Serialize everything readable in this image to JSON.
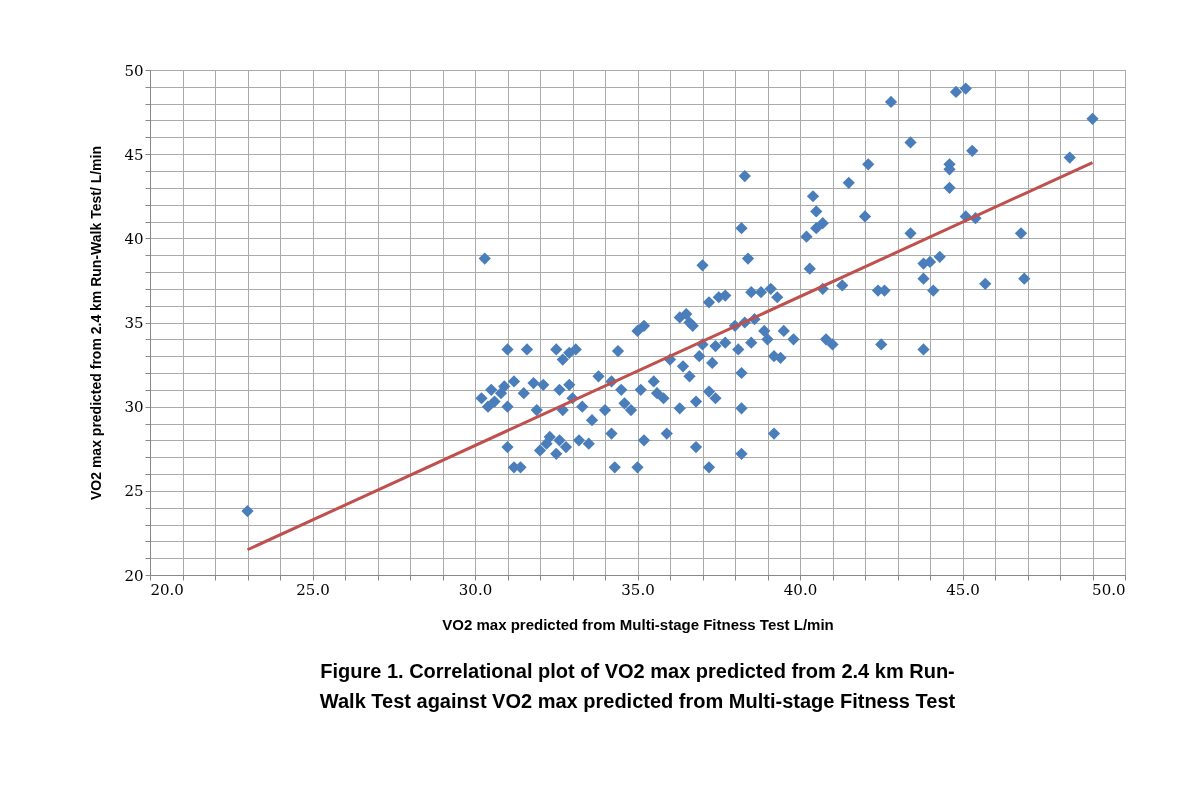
{
  "chart_data": {
    "type": "scatter",
    "xlabel": "VO2 max predicted  from Multi-stage Fitness  Test L/min",
    "ylabel": "VO2 max predicted  from 2.4 km Run-Walk Test/ L/min",
    "annotations": [
      "Figure 1. Correlational  plot of VO2 max predicted from 2.4 km Run-\nWalk Test against VO2 max predicted from Multi-stage Fitness Test"
    ],
    "xlim": [
      20,
      50
    ],
    "ylim": [
      20,
      50
    ],
    "grid": true,
    "xticks": [
      {
        "value": 20,
        "label": "20.0"
      },
      {
        "value": 21,
        "label": null
      },
      {
        "value": 22,
        "label": null
      },
      {
        "value": 23,
        "label": null
      },
      {
        "value": 24,
        "label": null
      },
      {
        "value": 25,
        "label": "25.0"
      },
      {
        "value": 26,
        "label": null
      },
      {
        "value": 27,
        "label": null
      },
      {
        "value": 28,
        "label": null
      },
      {
        "value": 29,
        "label": null
      },
      {
        "value": 30,
        "label": "30.0"
      },
      {
        "value": 31,
        "label": null
      },
      {
        "value": 32,
        "label": null
      },
      {
        "value": 33,
        "label": null
      },
      {
        "value": 34,
        "label": null
      },
      {
        "value": 35,
        "label": "35.0"
      },
      {
        "value": 36,
        "label": null
      },
      {
        "value": 37,
        "label": null
      },
      {
        "value": 38,
        "label": null
      },
      {
        "value": 39,
        "label": null
      },
      {
        "value": 40,
        "label": "40.0"
      },
      {
        "value": 41,
        "label": null
      },
      {
        "value": 42,
        "label": null
      },
      {
        "value": 43,
        "label": null
      },
      {
        "value": 44,
        "label": null
      },
      {
        "value": 45,
        "label": "45.0"
      },
      {
        "value": 46,
        "label": null
      },
      {
        "value": 47,
        "label": null
      },
      {
        "value": 48,
        "label": null
      },
      {
        "value": 49,
        "label": null
      },
      {
        "value": 50,
        "label": "50.0"
      }
    ],
    "yticks": [
      20,
      {
        "value": 21,
        "label": null
      },
      {
        "value": 22,
        "label": null
      },
      {
        "value": 23,
        "label": null
      },
      {
        "value": 24,
        "label": null
      },
      25,
      {
        "value": 26,
        "label": null
      },
      {
        "value": 27,
        "label": null
      },
      {
        "value": 28,
        "label": null
      },
      {
        "value": 29,
        "label": null
      },
      30,
      {
        "value": 31,
        "label": null
      },
      {
        "value": 32,
        "label": null
      },
      {
        "value": 33,
        "label": null
      },
      {
        "value": 34,
        "label": null
      },
      35,
      {
        "value": 36,
        "label": null
      },
      {
        "value": 37,
        "label": null
      },
      {
        "value": 38,
        "label": null
      },
      {
        "value": 39,
        "label": null
      },
      40,
      {
        "value": 41,
        "label": null
      },
      {
        "value": 42,
        "label": null
      },
      {
        "value": 43,
        "label": null
      },
      {
        "value": 44,
        "label": null
      },
      45,
      {
        "value": 46,
        "label": null
      },
      {
        "value": 47,
        "label": null
      },
      {
        "value": 48,
        "label": null
      },
      {
        "value": 49,
        "label": null
      },
      50
    ],
    "series": [
      {
        "color": "#4a7ebb",
        "marker": "diamond",
        "x": [
          23.0,
          30.3,
          30.2,
          30.4,
          30.5,
          30.6,
          30.8,
          31.0,
          30.9,
          31.2,
          31.0,
          31.5,
          31.8,
          31.6,
          31.0,
          31.2,
          31.4,
          31.9,
          32.1,
          32.0,
          32.2,
          32.3,
          32.5,
          32.6,
          32.8,
          32.5,
          32.7,
          32.9,
          33.1,
          32.6,
          32.9,
          33.0,
          32.7,
          33.3,
          33.5,
          33.2,
          33.6,
          33.8,
          34.0,
          34.2,
          34.2,
          34.3,
          34.5,
          34.4,
          34.6,
          34.8,
          35.0,
          35.2,
          35.1,
          35.0,
          35.2,
          35.5,
          35.6,
          35.8,
          35.9,
          36.0,
          36.3,
          36.5,
          36.6,
          36.7,
          36.4,
          36.6,
          36.3,
          36.8,
          36.8,
          36.9,
          37.0,
          37.0,
          37.2,
          37.3,
          37.2,
          37.4,
          37.2,
          37.5,
          37.7,
          37.4,
          37.7,
          38.0,
          38.1,
          38.2,
          38.2,
          38.3,
          38.2,
          38.2,
          38.4,
          38.5,
          38.3,
          38.6,
          38.5,
          38.8,
          38.9,
          39.0,
          39.1,
          39.3,
          39.2,
          39.5,
          39.2,
          39.4,
          39.8,
          40.2,
          40.3,
          40.4,
          40.5,
          40.5,
          40.7,
          40.7,
          40.8,
          41.0,
          41.3,
          41.5,
          42.0,
          42.1,
          42.4,
          42.5,
          42.6,
          42.8,
          43.4,
          43.4,
          43.8,
          43.8,
          43.8,
          44.1,
          44.0,
          44.3,
          44.6,
          44.6,
          44.6,
          44.8,
          45.1,
          45.1,
          45.3,
          45.4,
          45.7,
          46.8,
          46.9,
          48.3,
          49.0
        ],
        "values": [
          23.8,
          38.8,
          30.5,
          30.0,
          31.0,
          30.3,
          30.8,
          30.0,
          31.2,
          31.5,
          33.4,
          30.8,
          31.4,
          33.4,
          27.6,
          26.4,
          26.4,
          29.8,
          31.3,
          27.4,
          27.8,
          28.2,
          27.2,
          28.0,
          27.6,
          33.4,
          32.8,
          33.2,
          33.4,
          31.0,
          31.3,
          30.5,
          29.8,
          30.0,
          27.8,
          28.0,
          29.2,
          31.8,
          29.8,
          31.5,
          28.4,
          26.4,
          31.0,
          33.3,
          30.2,
          29.8,
          34.5,
          34.8,
          31.0,
          26.4,
          28.0,
          31.5,
          30.8,
          30.5,
          28.4,
          32.8,
          35.3,
          35.5,
          35.0,
          34.8,
          32.4,
          31.8,
          29.9,
          30.3,
          27.6,
          33.0,
          38.4,
          33.7,
          36.2,
          32.6,
          30.9,
          30.5,
          26.4,
          36.5,
          36.6,
          33.6,
          33.8,
          34.8,
          33.4,
          32.0,
          40.6,
          43.7,
          29.9,
          27.2,
          38.8,
          36.8,
          35.0,
          35.2,
          33.8,
          36.8,
          34.5,
          34.0,
          37.0,
          36.5,
          33.0,
          34.5,
          28.4,
          32.9,
          34.0,
          40.1,
          38.2,
          42.5,
          41.6,
          40.6,
          40.9,
          37.0,
          34.0,
          33.7,
          37.2,
          43.3,
          41.3,
          44.4,
          36.9,
          33.7,
          36.9,
          48.1,
          45.7,
          40.3,
          38.5,
          37.6,
          33.4,
          36.9,
          38.6,
          38.9,
          44.4,
          44.1,
          43.0,
          48.7,
          48.9,
          41.3,
          45.2,
          41.2,
          37.3,
          40.3,
          37.6,
          44.8,
          47.1
        ]
      },
      {
        "type": "line",
        "marker": "none",
        "color": "#c0504d",
        "x": [
          23.0,
          49.0
        ],
        "values": [
          21.5,
          44.5
        ]
      }
    ]
  }
}
